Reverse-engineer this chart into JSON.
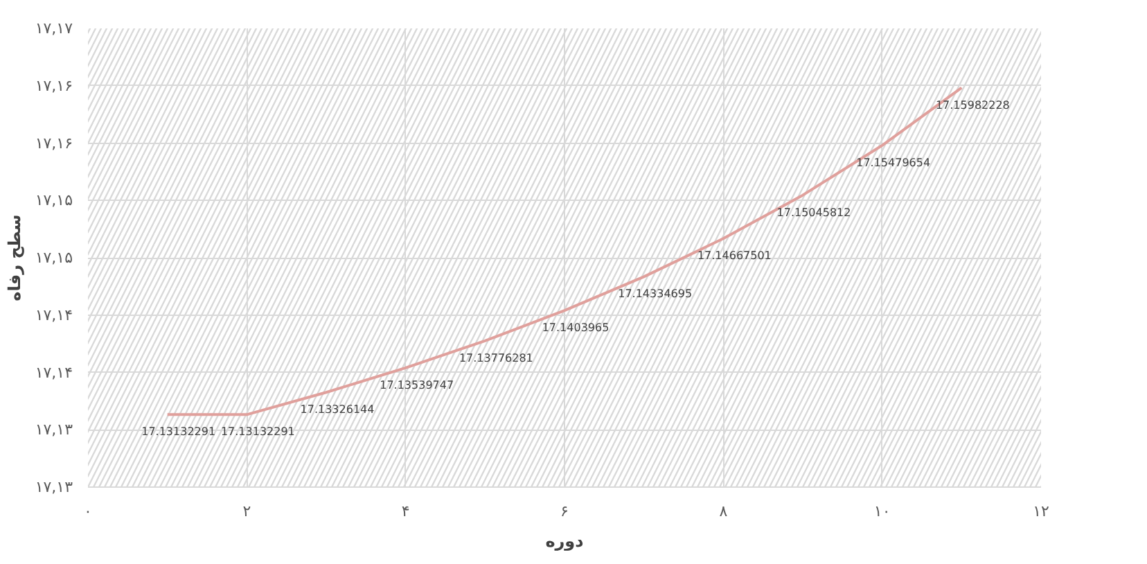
{
  "chart_data": {
    "type": "line",
    "xlabel": "دوره",
    "ylabel": "سطح رفاه",
    "x": [
      1,
      2,
      3,
      4,
      5,
      6,
      7,
      8,
      9,
      10,
      11
    ],
    "series": [
      {
        "color": "#e0a09c",
        "values": [
          17.13132291,
          17.13132291,
          17.13326144,
          17.13539747,
          17.13776281,
          17.1403965,
          17.14334695,
          17.14667501,
          17.15045812,
          17.15479654,
          17.15982228
        ]
      }
    ],
    "xlim": [
      0,
      12
    ],
    "xticks": [
      {
        "value": 0,
        "label": "۰"
      },
      {
        "value": 2,
        "label": "۲"
      },
      {
        "value": 4,
        "label": "۴"
      },
      {
        "value": 6,
        "label": "۶"
      },
      {
        "value": 8,
        "label": "۸"
      },
      {
        "value": 10,
        "label": "۱۰"
      },
      {
        "value": 12,
        "label": "۱۲"
      }
    ],
    "ylim": [
      17.125,
      17.165
    ],
    "yticks": [
      {
        "value": 17.125,
        "label": "۱۷,۱۳"
      },
      {
        "value": 17.13,
        "label": "۱۷,۱۳"
      },
      {
        "value": 17.135,
        "label": "۱۷,۱۴"
      },
      {
        "value": 17.14,
        "label": "۱۷,۱۴"
      },
      {
        "value": 17.145,
        "label": "۱۷,۱۵"
      },
      {
        "value": 17.15,
        "label": "۱۷,۱۵"
      },
      {
        "value": 17.155,
        "label": "۱۷,۱۶"
      },
      {
        "value": 17.16,
        "label": "۱۷,۱۶"
      },
      {
        "value": 17.165,
        "label": "۱۷,۱۷"
      }
    ],
    "grid": true,
    "data_labels": true,
    "marker": "none",
    "line_style": "solid"
  }
}
